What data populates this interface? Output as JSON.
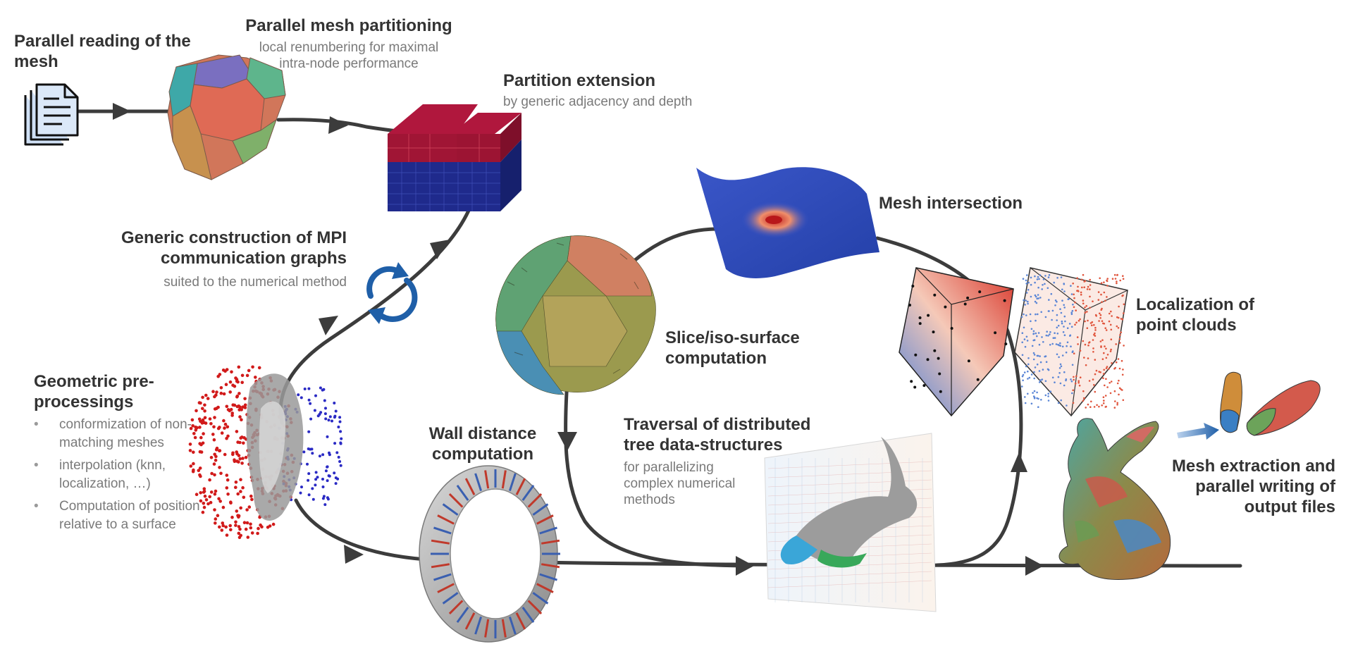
{
  "steps": {
    "reading": {
      "title": "Parallel reading of the mesh"
    },
    "partitioning": {
      "title": "Parallel mesh partitioning",
      "subtitle": "local renumbering for maximal intra-node performance"
    },
    "extension": {
      "title": "Partition extension",
      "subtitle": "by generic adjacency and depth"
    },
    "mpi": {
      "title": "Generic construction of MPI communication graphs",
      "subtitle": "suited to the numerical method"
    },
    "geometric": {
      "title": "Geometric pre-processings",
      "bullets": [
        "conformization of non-matching meshes",
        "interpolation (knn, localization, …)",
        "Computation of position relative to a surface"
      ]
    },
    "wall": {
      "title": "Wall distance computation"
    },
    "slice": {
      "title": "Slice/iso-surface computation"
    },
    "intersection": {
      "title": "Mesh intersection"
    },
    "traversal": {
      "title": "Traversal of distributed tree data-structures",
      "subtitle": "for parallelizing complex numerical methods"
    },
    "localization": {
      "title": "Localization of point clouds"
    },
    "extraction": {
      "title": "Mesh extraction and parallel writing of output files"
    }
  },
  "icons": {
    "file": "document-stack-icon",
    "cycle": "refresh-cycle-icon",
    "transfer": "arrow-right-icon"
  },
  "colors": {
    "flow_line": "#3c3c3c",
    "title_text": "#333333",
    "subtitle_text": "#7a7a7a",
    "partition_red": "#b0173d",
    "partition_blue": "#1f2a8c",
    "cycle_blue": "#1f5fa8"
  }
}
